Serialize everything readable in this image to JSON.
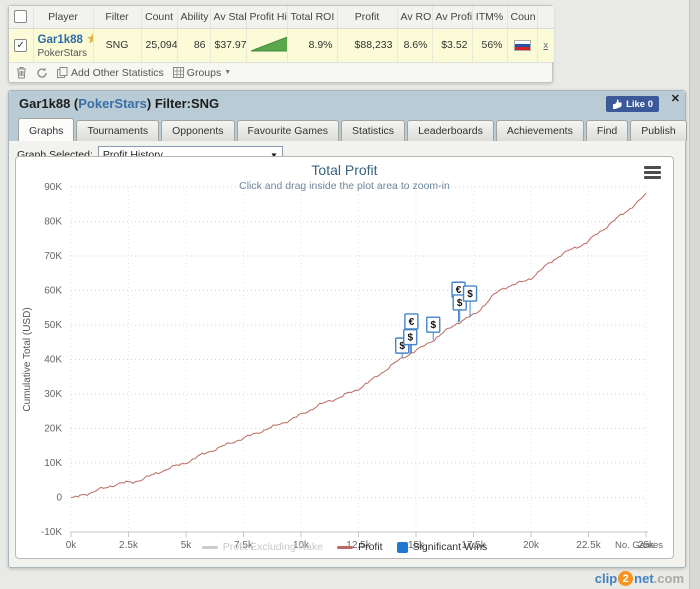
{
  "stats_table": {
    "columns": [
      "",
      "Player",
      "Filter",
      "Count",
      "Ability",
      "Av Stak",
      "Profit Hist",
      "Total ROI",
      "Profit",
      "Av ROI",
      "Av Profit",
      "ITM%",
      "Coun",
      ""
    ],
    "row": {
      "player": "Gar1k88",
      "site": "PokerStars",
      "filter": "SNG",
      "count": "25,094",
      "ability": "86",
      "av_stake": "$37.97",
      "total_roi": "8.9%",
      "profit": "$88,233",
      "av_roi": "8.6%",
      "av_profit": "$3.52",
      "itm": "56%",
      "country": "russia-flag",
      "expand": "x"
    },
    "toolbar": {
      "add_stats_label": "Add Other Statistics",
      "groups_label": "Groups"
    }
  },
  "panel": {
    "title_prefix": "Gar1k88 (",
    "title_site": "PokerStars",
    "title_suffix": ") Filter:SNG",
    "like_label": "Like 0",
    "close_label": "✕",
    "tabs": [
      "Graphs",
      "Tournaments",
      "Opponents",
      "Favourite Games",
      "Statistics",
      "Leaderboards",
      "Achievements",
      "Find",
      "Publish"
    ],
    "active_tab": "Graphs",
    "graph_selector": {
      "label": "Graph Selected:",
      "value": "Profit History"
    }
  },
  "chart_data": {
    "type": "line",
    "title": "Total Profit",
    "subtitle": "Click and drag inside the plot area to zoom-in",
    "ylabel": "Cumulative Total (USD)",
    "xlabel": "No. Games",
    "xlim": [
      0,
      25000
    ],
    "ylim": [
      -10000,
      90000
    ],
    "grid": "dotted",
    "legend_position": "bottom",
    "yticks": {
      "values": [
        90000,
        80000,
        70000,
        60000,
        50000,
        40000,
        30000,
        20000,
        10000,
        0,
        -10000
      ],
      "labels": [
        "90K",
        "80K",
        "70K",
        "60K",
        "50K",
        "40K",
        "30K",
        "20K",
        "10K",
        "0",
        "-10K"
      ]
    },
    "xticks": {
      "values": [
        0,
        2500,
        5000,
        7500,
        10000,
        12500,
        15000,
        17500,
        20000,
        22500,
        25000
      ],
      "labels": [
        "0k",
        "2.5k",
        "5k",
        "7.5k",
        "10k",
        "12.5k",
        "15k",
        "17.5k",
        "20k",
        "22.5k",
        "25k"
      ]
    },
    "series": [
      {
        "name": "Profit Excluding Rake",
        "color": "#cccccc",
        "disabled": true,
        "points": []
      },
      {
        "name": "Profit",
        "color": "#bb6a61",
        "points": [
          [
            0,
            0
          ],
          [
            300,
            200
          ],
          [
            600,
            900
          ],
          [
            900,
            1500
          ],
          [
            1200,
            2300
          ],
          [
            1500,
            2700
          ],
          [
            1800,
            3500
          ],
          [
            2100,
            4100
          ],
          [
            2400,
            4300
          ],
          [
            2700,
            4400
          ],
          [
            3000,
            5100
          ],
          [
            3300,
            5900
          ],
          [
            3600,
            6600
          ],
          [
            4000,
            7800
          ],
          [
            4400,
            8800
          ],
          [
            4800,
            9600
          ],
          [
            5200,
            10700
          ],
          [
            5600,
            12100
          ],
          [
            6000,
            13300
          ],
          [
            6400,
            14300
          ],
          [
            6800,
            15400
          ],
          [
            7200,
            16500
          ],
          [
            7600,
            17400
          ],
          [
            8000,
            18500
          ],
          [
            8400,
            19500
          ],
          [
            8800,
            20500
          ],
          [
            9200,
            21600
          ],
          [
            9600,
            22700
          ],
          [
            10000,
            24000
          ],
          [
            10400,
            25400
          ],
          [
            10800,
            26800
          ],
          [
            11200,
            27900
          ],
          [
            11600,
            28800
          ],
          [
            12000,
            30000
          ],
          [
            12400,
            31100
          ],
          [
            12800,
            32800
          ],
          [
            13200,
            34600
          ],
          [
            13600,
            36600
          ],
          [
            14000,
            38600
          ],
          [
            14400,
            40400
          ],
          [
            14800,
            41900
          ],
          [
            15200,
            43300
          ],
          [
            15600,
            45000
          ],
          [
            16000,
            46800
          ],
          [
            16400,
            48800
          ],
          [
            16800,
            50600
          ],
          [
            17200,
            51900
          ],
          [
            17600,
            53300
          ],
          [
            18000,
            56000
          ],
          [
            18400,
            58800
          ],
          [
            18800,
            60700
          ],
          [
            19200,
            61600
          ],
          [
            19600,
            62400
          ],
          [
            20000,
            63600
          ],
          [
            20400,
            65700
          ],
          [
            20800,
            68000
          ],
          [
            21200,
            69900
          ],
          [
            21600,
            71400
          ],
          [
            22000,
            72600
          ],
          [
            22400,
            73800
          ],
          [
            22800,
            76000
          ],
          [
            23200,
            78000
          ],
          [
            23600,
            80200
          ],
          [
            24000,
            82200
          ],
          [
            24400,
            84300
          ],
          [
            24800,
            86500
          ],
          [
            25000,
            88233
          ]
        ]
      }
    ],
    "significant_wins": {
      "name": "Significant Wins",
      "color": "#2079cf",
      "flag_border": "#4585c7",
      "points": [
        {
          "games": 14400,
          "line_value": 40400,
          "rise": 5,
          "label": "$"
        },
        {
          "games": 14750,
          "line_value": 41700,
          "rise": 9,
          "label": "$"
        },
        {
          "games": 14800,
          "line_value": 41900,
          "rise": 24,
          "label": "€"
        },
        {
          "games": 15750,
          "line_value": 45600,
          "rise": 8,
          "label": "$"
        },
        {
          "games": 16850,
          "line_value": 50800,
          "rise": 25,
          "label": "€"
        },
        {
          "games": 16900,
          "line_value": 50900,
          "rise": 12,
          "label": "$"
        },
        {
          "games": 17350,
          "line_value": 52300,
          "rise": 16,
          "label": "$"
        }
      ]
    },
    "legend": [
      {
        "label": "Profit Excluding Rake",
        "swatch": "line",
        "color": "#cccccc",
        "text_color": "#c9c9c9"
      },
      {
        "label": "Profit",
        "swatch": "line",
        "color": "#bb6a61",
        "text_color": "#333333"
      },
      {
        "label": "Significant Wins",
        "swatch": "square",
        "color": "#2079cf",
        "text_color": "#333333"
      }
    ]
  },
  "watermark": {
    "part1": "clip",
    "part2": "2",
    "part3": "net",
    "part4": ".com"
  }
}
